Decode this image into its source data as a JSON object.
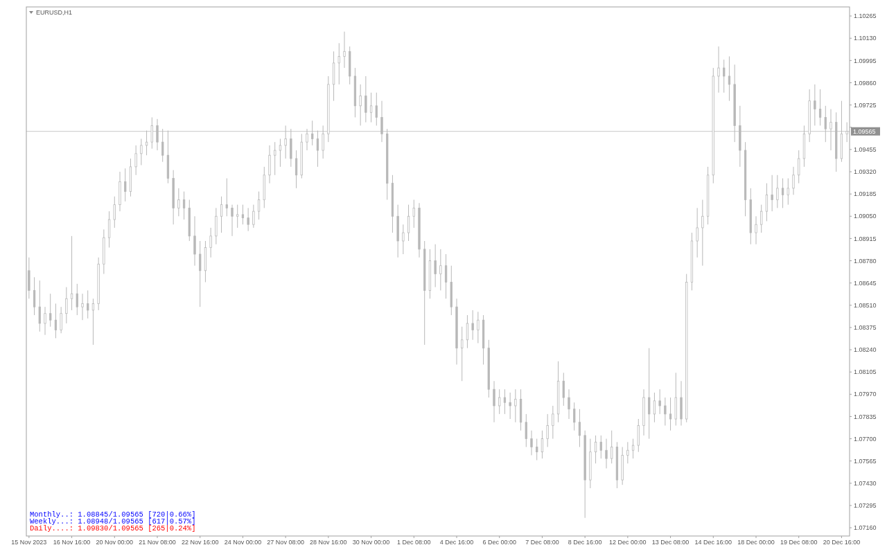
{
  "chart_data": {
    "type": "candlestick",
    "title": "EURUSD,H1",
    "color": "#b8b8b8",
    "categories": [
      "15 Nov 2023",
      null,
      null,
      null,
      null,
      null,
      null,
      null,
      "16 Nov 16:00",
      null,
      null,
      null,
      null,
      null,
      null,
      null,
      "20 Nov 00:00",
      null,
      null,
      null,
      null,
      null,
      null,
      null,
      "21 Nov 08:00",
      null,
      null,
      null,
      null,
      null,
      null,
      null,
      "22 Nov 16:00",
      null,
      null,
      null,
      null,
      null,
      null,
      null,
      "24 Nov 00:00",
      null,
      null,
      null,
      null,
      null,
      null,
      null,
      "27 Nov 08:00",
      null,
      null,
      null,
      null,
      null,
      null,
      null,
      "28 Nov 16:00",
      null,
      null,
      null,
      null,
      null,
      null,
      null,
      "30 Nov 00:00",
      null,
      null,
      null,
      null,
      null,
      null,
      null,
      "1 Dec 08:00",
      null,
      null,
      null,
      null,
      null,
      null,
      null,
      "4 Dec 16:00",
      null,
      null,
      null,
      null,
      null,
      null,
      null,
      "6 Dec 00:00",
      null,
      null,
      null,
      null,
      null,
      null,
      null,
      "7 Dec 08:00",
      null,
      null,
      null,
      null,
      null,
      null,
      null,
      "8 Dec 16:00",
      null,
      null,
      null,
      null,
      null,
      null,
      null,
      "12 Dec 00:00",
      null,
      null,
      null,
      null,
      null,
      null,
      null,
      "13 Dec 08:00",
      null,
      null,
      null,
      null,
      null,
      null,
      null,
      "14 Dec 16:00",
      null,
      null,
      null,
      null,
      null,
      null,
      null,
      "18 Dec 00:00",
      null,
      null,
      null,
      null,
      null,
      null,
      null,
      "19 Dec 08:00",
      null,
      null,
      null,
      null,
      null,
      null,
      null,
      "20 Dec 16:00",
      null
    ],
    "ohlc": [
      [
        1.0872,
        1.088,
        1.0855,
        1.086
      ],
      [
        1.086,
        1.0868,
        1.0845,
        1.085
      ],
      [
        1.085,
        1.0866,
        1.0835,
        1.084
      ],
      [
        1.084,
        1.085,
        1.0833,
        1.0846
      ],
      [
        1.0846,
        1.0858,
        1.0838,
        1.0842
      ],
      [
        1.0842,
        1.0852,
        1.0831,
        1.0836
      ],
      [
        1.0836,
        1.085,
        1.0834,
        1.0846
      ],
      [
        1.0846,
        1.0862,
        1.084,
        1.0855
      ],
      [
        1.0855,
        1.0893,
        1.0848,
        1.0858
      ],
      [
        1.0858,
        1.0864,
        1.0845,
        1.085
      ],
      [
        1.085,
        1.0858,
        1.0842,
        1.0852
      ],
      [
        1.0852,
        1.086,
        1.0843,
        1.0848
      ],
      [
        1.0848,
        1.0855,
        1.0827,
        1.0852
      ],
      [
        1.0852,
        1.088,
        1.0848,
        1.0876
      ],
      [
        1.0876,
        1.0897,
        1.087,
        1.0892
      ],
      [
        1.0892,
        1.0908,
        1.0886,
        1.0903
      ],
      [
        1.0903,
        1.0917,
        1.0898,
        1.0912
      ],
      [
        1.0912,
        1.0932,
        1.0908,
        1.0926
      ],
      [
        1.0926,
        1.0934,
        1.0914,
        1.092
      ],
      [
        1.092,
        1.094,
        1.0917,
        1.0935
      ],
      [
        1.0935,
        1.0948,
        1.093,
        1.0943
      ],
      [
        1.0943,
        1.0952,
        1.0936,
        1.0948
      ],
      [
        1.0948,
        1.0957,
        1.0942,
        1.095
      ],
      [
        1.095,
        1.0965,
        1.0946,
        1.096
      ],
      [
        1.096,
        1.0964,
        1.0945,
        1.095
      ],
      [
        1.095,
        1.0958,
        1.0938,
        1.0942
      ],
      [
        1.0942,
        1.0957,
        1.0925,
        1.0928
      ],
      [
        1.0928,
        1.0933,
        1.09,
        1.091
      ],
      [
        1.091,
        1.0922,
        1.0905,
        1.0915
      ],
      [
        1.0915,
        1.092,
        1.0903,
        1.091
      ],
      [
        1.091,
        1.0915,
        1.089,
        1.0893
      ],
      [
        1.0893,
        1.0905,
        1.0875,
        1.0882
      ],
      [
        1.0882,
        1.089,
        1.085,
        1.0872
      ],
      [
        1.0872,
        1.089,
        1.0865,
        1.0886
      ],
      [
        1.0886,
        1.0898,
        1.088,
        1.0893
      ],
      [
        1.0893,
        1.091,
        1.0888,
        1.0905
      ],
      [
        1.0905,
        1.0917,
        1.0895,
        1.0912
      ],
      [
        1.0912,
        1.0928,
        1.0905,
        1.091
      ],
      [
        1.091,
        1.0912,
        1.0893,
        1.0905
      ],
      [
        1.0905,
        1.0912,
        1.0898,
        1.0906
      ],
      [
        1.0906,
        1.0912,
        1.09,
        1.0904
      ],
      [
        1.0904,
        1.091,
        1.0896,
        1.09
      ],
      [
        1.09,
        1.0912,
        1.0898,
        1.0908
      ],
      [
        1.0908,
        1.092,
        1.0903,
        1.0915
      ],
      [
        1.0915,
        1.0935,
        1.091,
        1.093
      ],
      [
        1.093,
        1.0948,
        1.0925,
        1.0942
      ],
      [
        1.0942,
        1.095,
        1.093,
        1.0945
      ],
      [
        1.0945,
        1.0952,
        1.0935,
        1.0948
      ],
      [
        1.0948,
        1.096,
        1.094,
        1.0952
      ],
      [
        1.0952,
        1.0958,
        1.0935,
        1.094
      ],
      [
        1.094,
        1.0945,
        1.0922,
        1.093
      ],
      [
        1.093,
        1.0955,
        1.0928,
        1.095
      ],
      [
        1.095,
        1.0958,
        1.0945,
        1.0955
      ],
      [
        1.0955,
        1.0963,
        1.0948,
        1.0952
      ],
      [
        1.0952,
        1.0957,
        1.0935,
        1.0945
      ],
      [
        1.0945,
        1.096,
        1.094,
        1.0955
      ],
      [
        1.0955,
        1.099,
        1.095,
        1.0985
      ],
      [
        1.0985,
        1.1005,
        1.0975,
        1.0998
      ],
      [
        1.0998,
        1.101,
        1.0985,
        1.1002
      ],
      [
        1.1002,
        1.1017,
        1.0995,
        1.1005
      ],
      [
        1.1005,
        1.1008,
        1.0985,
        1.099
      ],
      [
        1.099,
        1.0995,
        1.0965,
        1.0972
      ],
      [
        1.0972,
        1.0985,
        1.096,
        1.0978
      ],
      [
        1.0978,
        1.099,
        1.0962,
        1.0968
      ],
      [
        1.0968,
        1.098,
        1.0962,
        1.0972
      ],
      [
        1.0972,
        1.098,
        1.096,
        1.0965
      ],
      [
        1.0965,
        1.0975,
        1.095,
        1.0955
      ],
      [
        1.0955,
        1.0958,
        1.0915,
        1.0925
      ],
      [
        1.0925,
        1.093,
        1.0895,
        1.0905
      ],
      [
        1.0905,
        1.0912,
        1.088,
        1.089
      ],
      [
        1.089,
        1.09,
        1.0882,
        1.0895
      ],
      [
        1.0895,
        1.0912,
        1.089,
        1.0905
      ],
      [
        1.0905,
        1.0915,
        1.0898,
        1.091
      ],
      [
        1.091,
        1.0913,
        1.088,
        1.0885
      ],
      [
        1.0885,
        1.089,
        1.0827,
        1.086
      ],
      [
        1.086,
        1.0885,
        1.0855,
        1.0878
      ],
      [
        1.0878,
        1.0888,
        1.0862,
        1.087
      ],
      [
        1.087,
        1.0885,
        1.086,
        1.0875
      ],
      [
        1.0875,
        1.0882,
        1.0855,
        1.0865
      ],
      [
        1.0865,
        1.0875,
        1.0845,
        1.085
      ],
      [
        1.085,
        1.0855,
        1.0815,
        1.0825
      ],
      [
        1.0825,
        1.0838,
        1.0805,
        1.083
      ],
      [
        1.083,
        1.0845,
        1.0825,
        1.084
      ],
      [
        1.084,
        1.0848,
        1.083,
        1.0836
      ],
      [
        1.0836,
        1.0847,
        1.0828,
        1.0842
      ],
      [
        1.0842,
        1.0845,
        1.0815,
        1.0825
      ],
      [
        1.0825,
        1.083,
        1.0795,
        1.08
      ],
      [
        1.08,
        1.0805,
        1.078,
        1.079
      ],
      [
        1.079,
        1.08,
        1.0785,
        1.0795
      ],
      [
        1.0795,
        1.08,
        1.0785,
        1.0792
      ],
      [
        1.0792,
        1.0798,
        1.0782,
        1.079
      ],
      [
        1.079,
        1.08,
        1.078,
        1.0794
      ],
      [
        1.0794,
        1.08,
        1.0775,
        1.078
      ],
      [
        1.078,
        1.0785,
        1.0765,
        1.077
      ],
      [
        1.077,
        1.0775,
        1.076,
        1.0765
      ],
      [
        1.0765,
        1.077,
        1.0757,
        1.0762
      ],
      [
        1.0762,
        1.0775,
        1.0758,
        1.077
      ],
      [
        1.077,
        1.0785,
        1.0765,
        1.0778
      ],
      [
        1.0778,
        1.079,
        1.077,
        1.0785
      ],
      [
        1.0785,
        1.0817,
        1.078,
        1.0805
      ],
      [
        1.0805,
        1.081,
        1.079,
        1.0795
      ],
      [
        1.0795,
        1.08,
        1.0782,
        1.0788
      ],
      [
        1.0788,
        1.0792,
        1.0775,
        1.078
      ],
      [
        1.078,
        1.0788,
        1.0765,
        1.0772
      ],
      [
        1.0772,
        1.0775,
        1.0722,
        1.0745
      ],
      [
        1.0745,
        1.077,
        1.074,
        1.0762
      ],
      [
        1.0762,
        1.0772,
        1.0755,
        1.0768
      ],
      [
        1.0768,
        1.0772,
        1.0758,
        1.0763
      ],
      [
        1.0763,
        1.077,
        1.0752,
        1.0758
      ],
      [
        1.0758,
        1.0775,
        1.0755,
        1.0765
      ],
      [
        1.0765,
        1.0768,
        1.074,
        1.0745
      ],
      [
        1.0745,
        1.0765,
        1.0742,
        1.076
      ],
      [
        1.076,
        1.0768,
        1.0755,
        1.0763
      ],
      [
        1.0763,
        1.077,
        1.0758,
        1.0766
      ],
      [
        1.0766,
        1.0782,
        1.0762,
        1.0778
      ],
      [
        1.0778,
        1.08,
        1.0772,
        1.0795
      ],
      [
        1.0795,
        1.0825,
        1.077,
        1.0785
      ],
      [
        1.0785,
        1.0798,
        1.078,
        1.0793
      ],
      [
        1.0793,
        1.08,
        1.0785,
        1.079
      ],
      [
        1.079,
        1.0795,
        1.0778,
        1.0785
      ],
      [
        1.0785,
        1.0795,
        1.0775,
        1.0782
      ],
      [
        1.0782,
        1.081,
        1.0778,
        1.0795
      ],
      [
        1.0795,
        1.0805,
        1.0778,
        1.0782
      ],
      [
        1.0782,
        1.087,
        1.078,
        1.0865
      ],
      [
        1.0865,
        1.0895,
        1.086,
        1.089
      ],
      [
        1.089,
        1.091,
        1.088,
        1.0898
      ],
      [
        1.0898,
        1.0915,
        1.0875,
        1.0905
      ],
      [
        1.0905,
        1.0935,
        1.09,
        1.093
      ],
      [
        1.093,
        1.0995,
        1.0925,
        1.099
      ],
      [
        1.099,
        1.1008,
        1.098,
        1.0995
      ],
      [
        1.0995,
        1.1,
        1.098,
        1.099
      ],
      [
        1.099,
        1.1002,
        1.0975,
        1.0985
      ],
      [
        1.0985,
        1.0997,
        1.095,
        1.096
      ],
      [
        1.096,
        1.0972,
        1.0935,
        1.0945
      ],
      [
        1.0945,
        1.095,
        1.0905,
        1.0915
      ],
      [
        1.0915,
        1.0922,
        1.0888,
        1.0895
      ],
      [
        1.0895,
        1.0905,
        1.0888,
        1.09
      ],
      [
        1.09,
        1.0912,
        1.0895,
        1.0908
      ],
      [
        1.0908,
        1.0925,
        1.0902,
        1.0918
      ],
      [
        1.0918,
        1.093,
        1.0908,
        1.0915
      ],
      [
        1.0915,
        1.093,
        1.091,
        1.0922
      ],
      [
        1.0922,
        1.0928,
        1.091,
        1.0918
      ],
      [
        1.0918,
        1.0928,
        1.0912,
        1.0922
      ],
      [
        1.0922,
        1.0935,
        1.0918,
        1.093
      ],
      [
        1.093,
        1.0945,
        1.0925,
        1.094
      ],
      [
        1.094,
        1.096,
        1.0935,
        1.0955
      ],
      [
        1.0955,
        1.0982,
        1.095,
        1.0975
      ],
      [
        1.0975,
        1.0985,
        1.096,
        1.097
      ],
      [
        1.097,
        1.0982,
        1.096,
        1.0965
      ],
      [
        1.0965,
        1.0972,
        1.095,
        1.0958
      ],
      [
        1.0958,
        1.097,
        1.0945,
        1.0962
      ],
      [
        1.0962,
        1.0968,
        1.0932,
        1.094
      ],
      [
        1.094,
        1.0975,
        1.0938,
        1.0955
      ],
      [
        1.0955,
        1.0962,
        1.095,
        1.09565
      ]
    ],
    "ylim": [
      1.0711,
      1.1032
    ],
    "yticks": [
      {
        "value": 1.0716,
        "label": "1.07160"
      },
      {
        "value": 1.07295,
        "label": "1.07295"
      },
      {
        "value": 1.0743,
        "label": "1.07430"
      },
      {
        "value": 1.07565,
        "label": "1.07565"
      },
      {
        "value": 1.077,
        "label": "1.07700"
      },
      {
        "value": 1.07835,
        "label": "1.07835"
      },
      {
        "value": 1.0797,
        "label": "1.07970"
      },
      {
        "value": 1.08105,
        "label": "1.08105"
      },
      {
        "value": 1.0824,
        "label": "1.08240"
      },
      {
        "value": 1.08375,
        "label": "1.08375"
      },
      {
        "value": 1.0851,
        "label": "1.08510"
      },
      {
        "value": 1.08645,
        "label": "1.08645"
      },
      {
        "value": 1.0878,
        "label": "1.08780"
      },
      {
        "value": 1.08915,
        "label": "1.08915"
      },
      {
        "value": 1.0905,
        "label": "1.09050"
      },
      {
        "value": 1.09185,
        "label": "1.09185"
      },
      {
        "value": 1.0932,
        "label": "1.09320"
      },
      {
        "value": 1.09455,
        "label": "1.09455"
      },
      {
        "value": 1.0959,
        "label": null
      },
      {
        "value": 1.09725,
        "label": "1.09725"
      },
      {
        "value": 1.0986,
        "label": "1.09860"
      },
      {
        "value": 1.09995,
        "label": "1.09995"
      },
      {
        "value": 1.1013,
        "label": "1.10130"
      },
      {
        "value": 1.10265,
        "label": "1.10265"
      }
    ],
    "ref_lines": [
      {
        "axis": "y",
        "value": 1.09565,
        "label": "1.09565",
        "color": "#c8c8c8"
      }
    ],
    "annotations": [
      "Monthly..: 1.08845/1.09565 [720|0.66%]",
      "Weekly...: 1.08948/1.09565 [617|0.57%]",
      "Daily....: 1.09830/1.09565 [265|0.24%]"
    ],
    "grid": false
  }
}
